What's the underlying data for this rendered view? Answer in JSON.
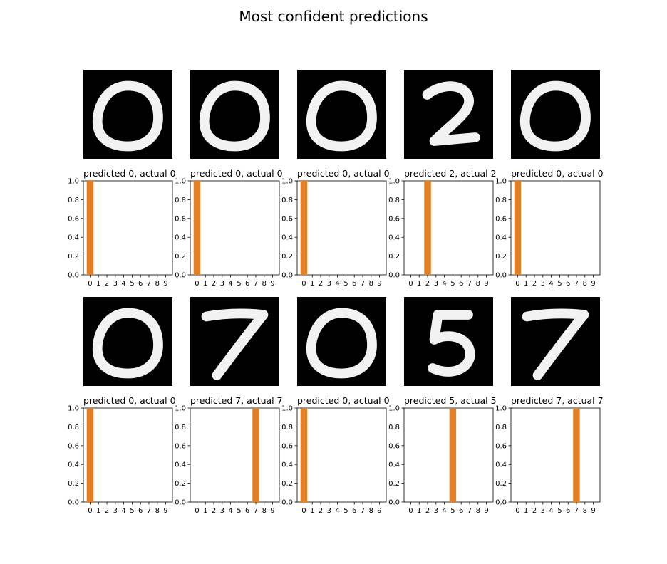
{
  "figure": {
    "title": "Most confident predictions",
    "bar_color": "#e57f25",
    "image_bg": "#000000",
    "digit_color": "#f2f2f2"
  },
  "chart_data": [
    {
      "type": "bar",
      "title": "predicted 0, actual 0",
      "digit_shown": "0",
      "categories": [
        "0",
        "1",
        "2",
        "3",
        "4",
        "5",
        "6",
        "7",
        "8",
        "9"
      ],
      "values": [
        1,
        0,
        0,
        0,
        0,
        0,
        0,
        0,
        0,
        0
      ],
      "ylim": [
        0,
        1
      ],
      "yticks": [
        "0.0",
        "0.2",
        "0.4",
        "0.6",
        "0.8",
        "1.0"
      ]
    },
    {
      "type": "bar",
      "title": "predicted 0, actual 0",
      "digit_shown": "0",
      "categories": [
        "0",
        "1",
        "2",
        "3",
        "4",
        "5",
        "6",
        "7",
        "8",
        "9"
      ],
      "values": [
        1,
        0,
        0,
        0,
        0,
        0,
        0,
        0,
        0,
        0
      ],
      "ylim": [
        0,
        1
      ],
      "yticks": [
        "0.0",
        "0.2",
        "0.4",
        "0.6",
        "0.8",
        "1.0"
      ]
    },
    {
      "type": "bar",
      "title": "predicted 0, actual 0",
      "digit_shown": "0",
      "categories": [
        "0",
        "1",
        "2",
        "3",
        "4",
        "5",
        "6",
        "7",
        "8",
        "9"
      ],
      "values": [
        1,
        0,
        0,
        0,
        0,
        0,
        0,
        0,
        0,
        0
      ],
      "ylim": [
        0,
        1
      ],
      "yticks": [
        "0.0",
        "0.2",
        "0.4",
        "0.6",
        "0.8",
        "1.0"
      ]
    },
    {
      "type": "bar",
      "title": "predicted 2, actual 2",
      "digit_shown": "2",
      "categories": [
        "0",
        "1",
        "2",
        "3",
        "4",
        "5",
        "6",
        "7",
        "8",
        "9"
      ],
      "values": [
        0,
        0,
        1,
        0,
        0,
        0,
        0,
        0,
        0,
        0
      ],
      "ylim": [
        0,
        1
      ],
      "yticks": [
        "0.0",
        "0.2",
        "0.4",
        "0.6",
        "0.8",
        "1.0"
      ]
    },
    {
      "type": "bar",
      "title": "predicted 0, actual 0",
      "digit_shown": "0",
      "categories": [
        "0",
        "1",
        "2",
        "3",
        "4",
        "5",
        "6",
        "7",
        "8",
        "9"
      ],
      "values": [
        1,
        0,
        0,
        0,
        0,
        0,
        0,
        0,
        0,
        0
      ],
      "ylim": [
        0,
        1
      ],
      "yticks": [
        "0.0",
        "0.2",
        "0.4",
        "0.6",
        "0.8",
        "1.0"
      ]
    },
    {
      "type": "bar",
      "title": "predicted 0, actual 0",
      "digit_shown": "0",
      "categories": [
        "0",
        "1",
        "2",
        "3",
        "4",
        "5",
        "6",
        "7",
        "8",
        "9"
      ],
      "values": [
        1,
        0,
        0,
        0,
        0,
        0,
        0,
        0,
        0,
        0
      ],
      "ylim": [
        0,
        1
      ],
      "yticks": [
        "0.0",
        "0.2",
        "0.4",
        "0.6",
        "0.8",
        "1.0"
      ]
    },
    {
      "type": "bar",
      "title": "predicted 7, actual 7",
      "digit_shown": "7",
      "categories": [
        "0",
        "1",
        "2",
        "3",
        "4",
        "5",
        "6",
        "7",
        "8",
        "9"
      ],
      "values": [
        0,
        0,
        0,
        0,
        0,
        0,
        0,
        1,
        0,
        0
      ],
      "ylim": [
        0,
        1
      ],
      "yticks": [
        "0.0",
        "0.2",
        "0.4",
        "0.6",
        "0.8",
        "1.0"
      ]
    },
    {
      "type": "bar",
      "title": "predicted 0, actual 0",
      "digit_shown": "0",
      "categories": [
        "0",
        "1",
        "2",
        "3",
        "4",
        "5",
        "6",
        "7",
        "8",
        "9"
      ],
      "values": [
        1,
        0,
        0,
        0,
        0,
        0,
        0,
        0,
        0,
        0
      ],
      "ylim": [
        0,
        1
      ],
      "yticks": [
        "0.0",
        "0.2",
        "0.4",
        "0.6",
        "0.8",
        "1.0"
      ]
    },
    {
      "type": "bar",
      "title": "predicted 5, actual 5",
      "digit_shown": "5",
      "categories": [
        "0",
        "1",
        "2",
        "3",
        "4",
        "5",
        "6",
        "7",
        "8",
        "9"
      ],
      "values": [
        0,
        0,
        0,
        0,
        0,
        1,
        0,
        0,
        0,
        0
      ],
      "ylim": [
        0,
        1
      ],
      "yticks": [
        "0.0",
        "0.2",
        "0.4",
        "0.6",
        "0.8",
        "1.0"
      ]
    },
    {
      "type": "bar",
      "title": "predicted 7, actual 7",
      "digit_shown": "7",
      "categories": [
        "0",
        "1",
        "2",
        "3",
        "4",
        "5",
        "6",
        "7",
        "8",
        "9"
      ],
      "values": [
        0,
        0,
        0,
        0,
        0,
        0,
        0,
        1,
        0,
        0
      ],
      "ylim": [
        0,
        1
      ],
      "yticks": [
        "0.0",
        "0.2",
        "0.4",
        "0.6",
        "0.8",
        "1.0"
      ]
    }
  ]
}
